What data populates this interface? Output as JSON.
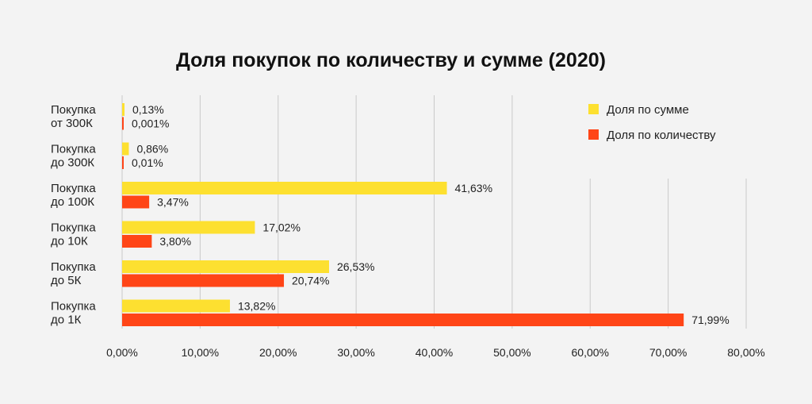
{
  "chart_data": {
    "type": "bar",
    "orientation": "horizontal",
    "title": "Доля покупок по количеству и сумме (2020)",
    "categories": [
      [
        "Покупка",
        "от 300К"
      ],
      [
        "Покупка",
        "до 300К"
      ],
      [
        "Покупка",
        "до 100К"
      ],
      [
        "Покупка",
        "до 10К"
      ],
      [
        "Покупка",
        "до 5К"
      ],
      [
        "Покупка",
        "до 1К"
      ]
    ],
    "series": [
      {
        "name": "Доля по сумме",
        "color": "#fde030",
        "values": [
          0.13,
          0.86,
          41.63,
          17.02,
          26.53,
          13.82
        ],
        "labels": [
          "0,13%",
          "0,86%",
          "41,63%",
          "17,02%",
          "26,53%",
          "13,82%"
        ]
      },
      {
        "name": "Доля по количеству",
        "color": "#ff4517",
        "values": [
          0.001,
          0.01,
          3.47,
          3.8,
          20.74,
          71.99
        ],
        "labels": [
          "0,001%",
          "0,01%",
          "3,47%",
          "3,80%",
          "20,74%",
          "71,99%"
        ]
      }
    ],
    "xlim": [
      0,
      80
    ],
    "xticks": [
      0,
      10,
      20,
      30,
      40,
      50,
      60,
      70,
      80
    ],
    "xtick_labels": [
      "0,00%",
      "10,00%",
      "20,00%",
      "30,00%",
      "40,00%",
      "50,00%",
      "60,00%",
      "70,00%",
      "80,00%"
    ],
    "grid": true,
    "legend_position": "top-right",
    "xlabel": "",
    "ylabel": ""
  }
}
